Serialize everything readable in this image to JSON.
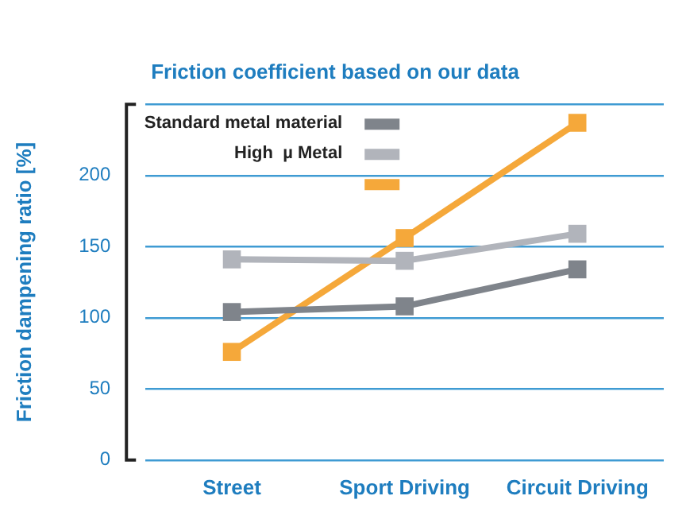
{
  "chart_data": {
    "type": "line",
    "title": "Friction coefficient based on our data",
    "ylabel": "Friction dampening ratio [%]",
    "categories": [
      "Street",
      "Sport Driving",
      "Circuit Driving"
    ],
    "series": [
      {
        "name": "Standard metal material",
        "color": "#7f848b",
        "values": [
          104,
          108,
          134
        ]
      },
      {
        "name": "High  µ Metal",
        "color": "#b1b4bb",
        "values": [
          141,
          140,
          159
        ]
      },
      {
        "color": "#f5a83a",
        "values": [
          76,
          156,
          237
        ]
      }
    ],
    "ylim": [
      0,
      250
    ],
    "yticks": [
      0,
      50,
      100,
      150,
      200,
      {
        "value": 250,
        "label": null
      }
    ],
    "grid": "y",
    "legend": "top left",
    "marker": "square",
    "line_style": "solid"
  }
}
